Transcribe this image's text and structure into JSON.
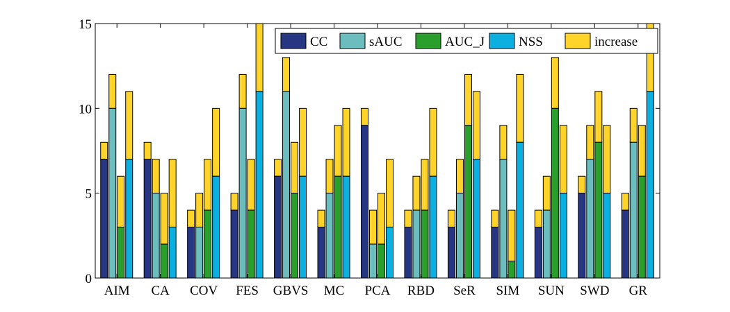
{
  "chart_data": {
    "type": "bar",
    "stacked": true,
    "title": "",
    "xlabel": "",
    "ylabel": "",
    "ylim": [
      0,
      15
    ],
    "yticks": [
      0,
      5,
      10,
      15
    ],
    "grid": false,
    "legend_position": "top-right",
    "categories": [
      "AIM",
      "CA",
      "COV",
      "FES",
      "GBVS",
      "MC",
      "PCA",
      "RBD",
      "SeR",
      "SIM",
      "SUN",
      "SWD",
      "GR"
    ],
    "series": [
      {
        "name": "CC",
        "color": "#263682",
        "base": [
          7,
          7,
          3,
          4,
          6,
          3,
          9,
          3,
          3,
          3,
          3,
          5,
          4
        ],
        "total": [
          8,
          8,
          4,
          5,
          7,
          4,
          10,
          4,
          4,
          4,
          4,
          6,
          5
        ]
      },
      {
        "name": "sAUC",
        "color": "#6CBEBE",
        "base": [
          10,
          5,
          3,
          10,
          11,
          5,
          2,
          4,
          5,
          7,
          4,
          7,
          8
        ],
        "total": [
          12,
          7,
          5,
          12,
          13,
          7,
          4,
          6,
          7,
          9,
          6,
          9,
          10
        ]
      },
      {
        "name": "AUC_J",
        "color": "#2B9F2B",
        "base": [
          3,
          2,
          4,
          4,
          5,
          6,
          2,
          4,
          9,
          1,
          10,
          8,
          6
        ],
        "total": [
          6,
          5,
          7,
          7,
          8,
          9,
          5,
          7,
          12,
          4,
          13,
          11,
          9
        ]
      },
      {
        "name": "NSS",
        "color": "#0BB0E0",
        "base": [
          7,
          3,
          6,
          11,
          6,
          6,
          3,
          6,
          7,
          8,
          5,
          5,
          11
        ],
        "total": [
          11,
          7,
          10,
          15,
          10,
          10,
          7,
          10,
          11,
          12,
          9,
          9,
          15
        ]
      }
    ],
    "increase": {
      "name": "increase",
      "color": "#FFD42A"
    }
  }
}
